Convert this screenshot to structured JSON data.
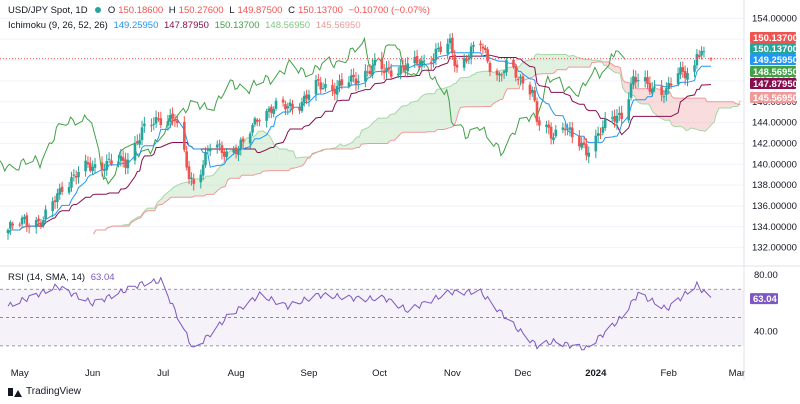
{
  "header": {
    "symbol": "USD/JPY Spot, 1D",
    "ohlc": [
      {
        "label": "O",
        "value": "150.18600"
      },
      {
        "label": "H",
        "value": "150.27600"
      },
      {
        "label": "L",
        "value": "149.87500"
      },
      {
        "label": "C",
        "value": "150.13700"
      },
      {
        "label": "",
        "value": "−0.10700 (−0.07%)"
      }
    ],
    "ichimoku_label": "Ichimoku (9, 26, 52, 26)",
    "ichimoku_values": [
      "149.25950",
      "147.87950",
      "150.13700",
      "148.56950",
      "145.56950"
    ],
    "rsi_label": "RSI (14, SMA, 14)",
    "rsi_value": "63.04"
  },
  "colors": {
    "up": "#26a69a",
    "down": "#ef5350",
    "conversion": "#2196f3",
    "base": "#880e4f",
    "lagging": "#43a047",
    "span_a": "#a5d6a7",
    "span_b": "#ef9a9a",
    "rsi": "#7e57c2"
  },
  "price_axis": {
    "ticks": [
      "154.00000",
      "152.00000",
      "150.00000",
      "148.00000",
      "146.00000",
      "144.00000",
      "142.00000",
      "140.00000",
      "138.00000",
      "136.00000",
      "134.00000",
      "132.00000"
    ]
  },
  "rsi_axis": {
    "ticks": [
      "80.00",
      "40.00"
    ]
  },
  "date_axis": {
    "labels": [
      "May",
      "Jun",
      "Jul",
      "Aug",
      "Sep",
      "Oct",
      "Nov",
      "Dec",
      "2024",
      "Feb",
      "Mar"
    ]
  },
  "price_tags": [
    {
      "value": "150.13700",
      "color": "#ef5350"
    },
    {
      "value": "150.13700",
      "color": "#26a69a"
    },
    {
      "value": "149.25950",
      "color": "#2196f3"
    },
    {
      "value": "148.56950",
      "color": "#43a047"
    },
    {
      "value": "147.87950",
      "color": "#880e4f"
    },
    {
      "value": "145.56950",
      "color": "#ef9a9a"
    }
  ],
  "rsi_tag": {
    "value": "63.04",
    "color": "#7e57c2"
  },
  "brand": "TradingView",
  "chart_data": {
    "type": "candlestick",
    "price_range": [
      131,
      155
    ],
    "rsi_range": [
      20,
      85
    ],
    "rsi_bands": [
      70,
      30
    ],
    "anchor_points": [
      {
        "date": "2023-04-26",
        "close": 133.7
      },
      {
        "date": "2023-05-03",
        "close": 134.6
      },
      {
        "date": "2023-05-11",
        "close": 134.5
      },
      {
        "date": "2023-05-19",
        "close": 137.9
      },
      {
        "date": "2023-05-30",
        "close": 139.8
      },
      {
        "date": "2023-06-07",
        "close": 140.0
      },
      {
        "date": "2023-06-15",
        "close": 140.3
      },
      {
        "date": "2023-06-22",
        "close": 143.1
      },
      {
        "date": "2023-06-30",
        "close": 144.5
      },
      {
        "date": "2023-07-06",
        "close": 144.4
      },
      {
        "date": "2023-07-12",
        "close": 138.9
      },
      {
        "date": "2023-07-14",
        "close": 138.2
      },
      {
        "date": "2023-07-21",
        "close": 141.7
      },
      {
        "date": "2023-07-28",
        "close": 141.2
      },
      {
        "date": "2023-08-04",
        "close": 141.8
      },
      {
        "date": "2023-08-11",
        "close": 144.9
      },
      {
        "date": "2023-08-18",
        "close": 145.4
      },
      {
        "date": "2023-08-29",
        "close": 145.9
      },
      {
        "date": "2023-09-05",
        "close": 147.7
      },
      {
        "date": "2023-09-13",
        "close": 147.3
      },
      {
        "date": "2023-09-21",
        "close": 148.3
      },
      {
        "date": "2023-09-29",
        "close": 149.3
      },
      {
        "date": "2023-10-03",
        "close": 149.0
      },
      {
        "date": "2023-10-11",
        "close": 149.2
      },
      {
        "date": "2023-10-20",
        "close": 149.9
      },
      {
        "date": "2023-10-31",
        "close": 151.5
      },
      {
        "date": "2023-11-03",
        "close": 149.4
      },
      {
        "date": "2023-11-13",
        "close": 151.6
      },
      {
        "date": "2023-11-17",
        "close": 149.6
      },
      {
        "date": "2023-11-21",
        "close": 148.4
      },
      {
        "date": "2023-11-24",
        "close": 149.4
      },
      {
        "date": "2023-11-30",
        "close": 148.2
      },
      {
        "date": "2023-12-05",
        "close": 147.2
      },
      {
        "date": "2023-12-07",
        "close": 144.0
      },
      {
        "date": "2023-12-13",
        "close": 142.9
      },
      {
        "date": "2023-12-19",
        "close": 143.8
      },
      {
        "date": "2023-12-22",
        "close": 142.4
      },
      {
        "date": "2023-12-28",
        "close": 141.4
      },
      {
        "date": "2024-01-03",
        "close": 143.2
      },
      {
        "date": "2024-01-08",
        "close": 144.3
      },
      {
        "date": "2024-01-12",
        "close": 144.9
      },
      {
        "date": "2024-01-17",
        "close": 148.1
      },
      {
        "date": "2024-01-24",
        "close": 147.5
      },
      {
        "date": "2024-01-31",
        "close": 146.9
      },
      {
        "date": "2024-02-05",
        "close": 148.7
      },
      {
        "date": "2024-02-12",
        "close": 149.3
      },
      {
        "date": "2024-02-13",
        "close": 150.8
      },
      {
        "date": "2024-02-16",
        "close": 150.2
      },
      {
        "date": "2024-02-19",
        "close": 150.137
      }
    ],
    "rsi_anchor_points": [
      {
        "date": "2023-04-26",
        "rsi": 58
      },
      {
        "date": "2023-05-17",
        "rsi": 72
      },
      {
        "date": "2023-06-01",
        "rsi": 60
      },
      {
        "date": "2023-06-22",
        "rsi": 74
      },
      {
        "date": "2023-06-30",
        "rsi": 76
      },
      {
        "date": "2023-07-14",
        "rsi": 27
      },
      {
        "date": "2023-07-28",
        "rsi": 50
      },
      {
        "date": "2023-08-11",
        "rsi": 66
      },
      {
        "date": "2023-08-23",
        "rsi": 58
      },
      {
        "date": "2023-09-05",
        "rsi": 66
      },
      {
        "date": "2023-09-25",
        "rsi": 63
      },
      {
        "date": "2023-10-03",
        "rsi": 64
      },
      {
        "date": "2023-10-13",
        "rsi": 55
      },
      {
        "date": "2023-10-31",
        "rsi": 68
      },
      {
        "date": "2023-11-13",
        "rsi": 68
      },
      {
        "date": "2023-11-28",
        "rsi": 43
      },
      {
        "date": "2023-12-07",
        "rsi": 30
      },
      {
        "date": "2023-12-14",
        "rsi": 33
      },
      {
        "date": "2023-12-28",
        "rsi": 28
      },
      {
        "date": "2024-01-12",
        "rsi": 50
      },
      {
        "date": "2024-01-19",
        "rsi": 67
      },
      {
        "date": "2024-01-31",
        "rsi": 56
      },
      {
        "date": "2024-02-13",
        "rsi": 73
      },
      {
        "date": "2024-02-19",
        "rsi": 63
      }
    ]
  }
}
